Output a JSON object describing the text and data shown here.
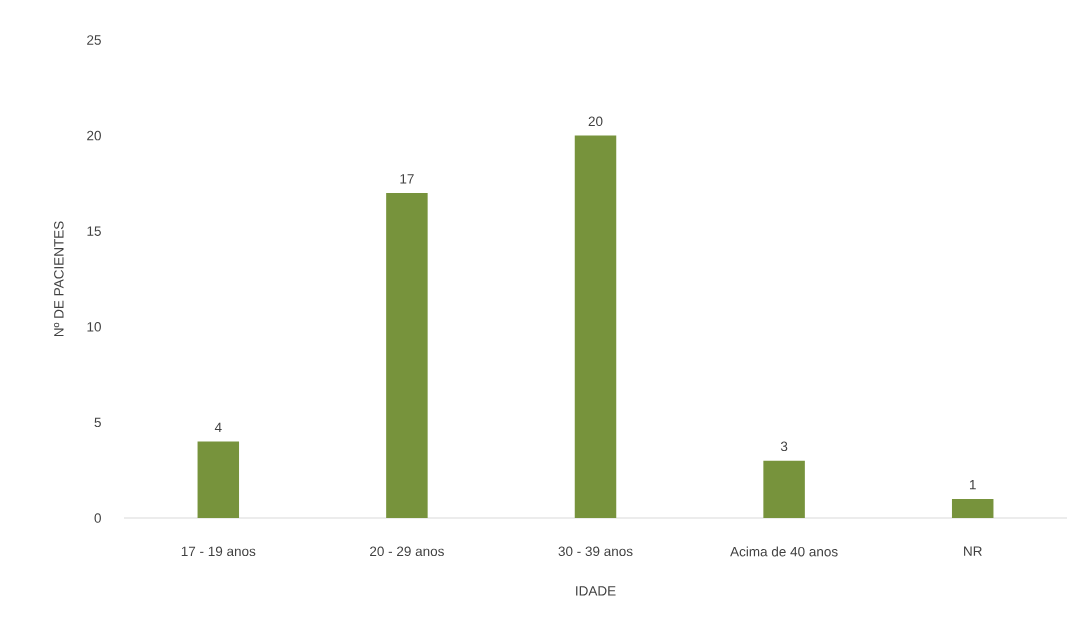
{
  "chart_data": {
    "type": "bar",
    "xlabel": "IDADE",
    "ylabel": "Nº DE PACIENTES",
    "categories": [
      "17 - 19 anos",
      "20 - 29 anos",
      "30 - 39 anos",
      "Acima de 40 anos",
      "NR"
    ],
    "values": [
      4,
      17,
      20,
      3,
      1
    ],
    "color": "#77933c",
    "ylim": [
      0,
      25
    ],
    "yticks": [
      0,
      5,
      10,
      15,
      20,
      25
    ],
    "data_labels": true
  }
}
